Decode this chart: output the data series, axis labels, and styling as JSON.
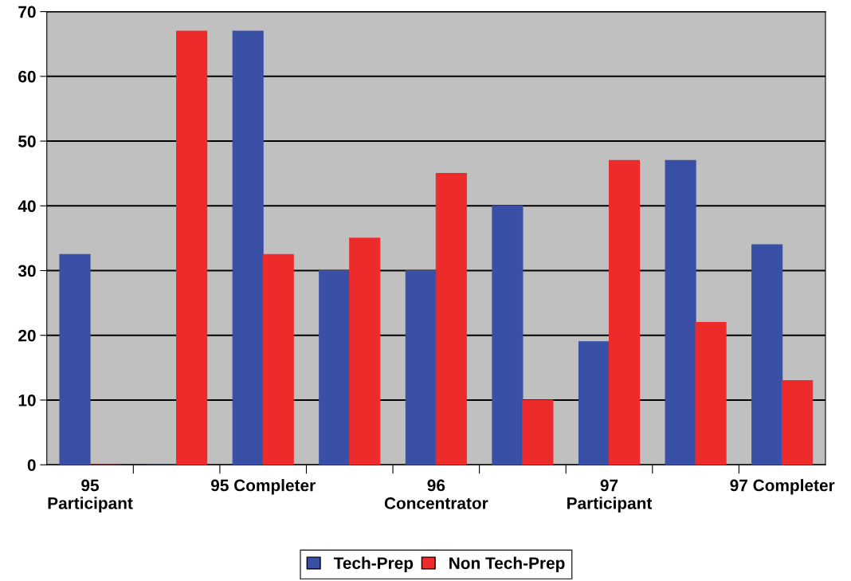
{
  "chart_data": {
    "type": "bar",
    "categories": [
      "95\nParticipant",
      null,
      "95 Completer",
      null,
      "96\nConcentrator",
      null,
      "97\nParticipant",
      null,
      "97 Completer"
    ],
    "series": [
      {
        "name": "Tech-Prep",
        "color": "#3a4fa6",
        "values": [
          32.5,
          0,
          67,
          30,
          30,
          40,
          19,
          47,
          34
        ]
      },
      {
        "name": "Non Tech-Prep",
        "color": "#ee2b2b",
        "values": [
          0,
          67,
          32.5,
          35,
          45,
          10,
          47,
          22,
          13
        ]
      }
    ],
    "ylim": [
      0,
      70
    ],
    "yticks": [
      0,
      10,
      20,
      30,
      40,
      50,
      60,
      70
    ],
    "grid": "y",
    "legend": "bottom"
  }
}
